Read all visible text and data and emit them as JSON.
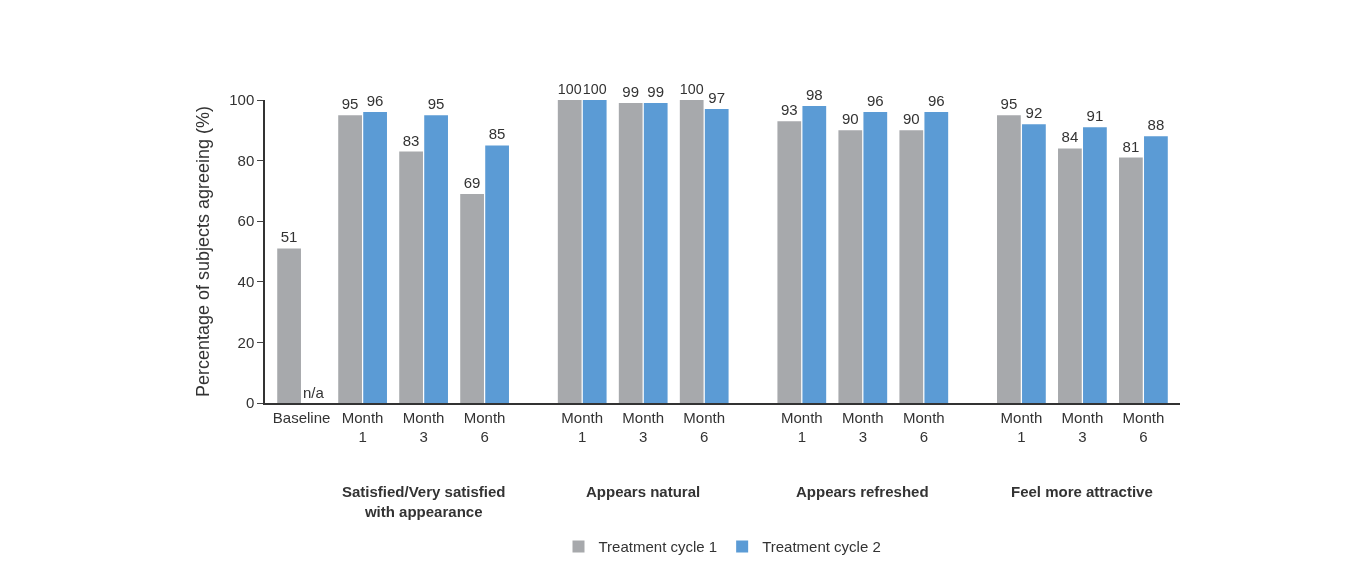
{
  "chart_data": {
    "type": "bar",
    "ylabel": "Percentage of subjects agreeing (%)",
    "categories": [
      "Baseline",
      "Month 1",
      "Month 3",
      "Month 6",
      "Month 1",
      "Month 3",
      "Month 6",
      "Month 1",
      "Month 3",
      "Month 6",
      "Month 1",
      "Month 3",
      "Month 6"
    ],
    "series": [
      {
        "name": "Treatment cycle 1",
        "color": "#a7a9ac",
        "values": [
          51,
          95,
          83,
          69,
          100,
          99,
          100,
          93,
          90,
          90,
          95,
          84,
          81
        ]
      },
      {
        "name": "Treatment cycle 2",
        "color": "#5b9bd5",
        "values": [
          null,
          96,
          95,
          85,
          100,
          99,
          97,
          98,
          96,
          96,
          92,
          91,
          88
        ]
      }
    ],
    "ylim": [
      0,
      100
    ],
    "yticks": [
      0,
      20,
      40,
      60,
      80,
      100
    ],
    "legend": "bottom",
    "data_labels": true,
    "annotations": [
      {
        "text": "n/a",
        "x": "Baseline",
        "y": 0
      },
      "Satisfied/Very satisfied with appearance",
      "Appears natural",
      "Appears refreshed",
      "Feel more attractive"
    ]
  }
}
